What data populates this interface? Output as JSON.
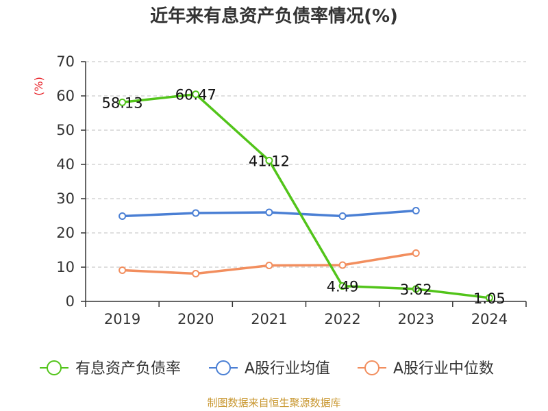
{
  "title": "近年来有息资产负债率情况(%)",
  "source": "制图数据来自恒生聚源数据库",
  "chart_data": {
    "type": "line",
    "title": "近年来有息资产负债率情况(%)",
    "ylabel": "(%)",
    "ylim": [
      0,
      70
    ],
    "yticks": [
      0,
      10,
      20,
      30,
      40,
      50,
      60,
      70
    ],
    "categories": [
      "2019",
      "2020",
      "2021",
      "2022",
      "2023",
      "2024"
    ],
    "grid": true,
    "legend": "bottom",
    "series": [
      {
        "name": "有息资产负债率",
        "color": "#52c41a",
        "values": [
          58.13,
          60.47,
          41.12,
          4.49,
          3.62,
          1.05
        ],
        "labels": [
          "58.13",
          "60.47",
          "41.12",
          "4.49",
          "3.62",
          "1.05"
        ]
      },
      {
        "name": "A股行业均值",
        "color": "#4a7fd4",
        "values": [
          24.9,
          25.8,
          26.0,
          24.9,
          26.5,
          null
        ]
      },
      {
        "name": "A股行业中位数",
        "color": "#f28e5e",
        "values": [
          9.1,
          8.1,
          10.5,
          10.6,
          14.1,
          null
        ]
      }
    ]
  }
}
